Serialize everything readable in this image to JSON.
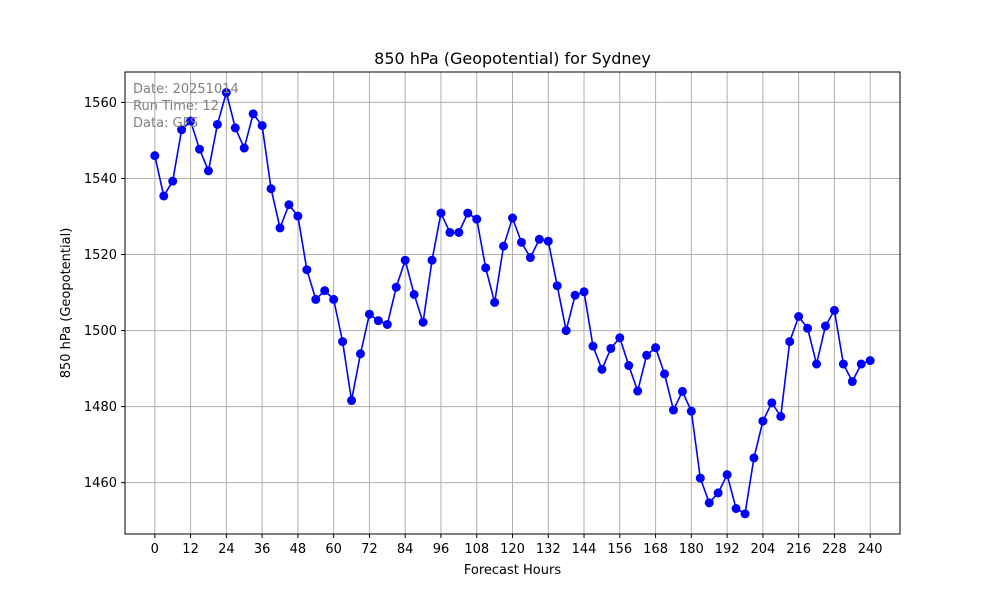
{
  "chart_data": {
    "type": "line",
    "title": "850 hPa (Geopotential) for Sydney",
    "xlabel": "Forecast Hours",
    "ylabel": "850 hPa (Geopotential)",
    "xlim": [
      -10,
      250
    ],
    "ylim": [
      1446.5,
      1568
    ],
    "xticks": [
      0,
      12,
      24,
      36,
      48,
      60,
      72,
      84,
      96,
      108,
      120,
      132,
      144,
      156,
      168,
      180,
      192,
      204,
      216,
      228,
      240
    ],
    "yticks": [
      1460,
      1480,
      1500,
      1520,
      1540,
      1560
    ],
    "grid": true,
    "annotations": [
      "Date: 20251014",
      "Run Time: 12",
      "Data: GFS"
    ],
    "series": [
      {
        "x": [
          0,
          3,
          6,
          9,
          12,
          15,
          18,
          21,
          24,
          27,
          30,
          33,
          36,
          39,
          42,
          45,
          48,
          51,
          54,
          57,
          60,
          63,
          66,
          69,
          72,
          75,
          78,
          81,
          84,
          87,
          90,
          93,
          96,
          99,
          102,
          105,
          108,
          111,
          114,
          117,
          120,
          123,
          126,
          129,
          132,
          135,
          138,
          141,
          144,
          147,
          150,
          153,
          156,
          159,
          162,
          165,
          168,
          171,
          174,
          177,
          180,
          183,
          186,
          189,
          192,
          195,
          198,
          201,
          204,
          207,
          210,
          213,
          216,
          219,
          222,
          225,
          228,
          231,
          234,
          237,
          240
        ],
        "values": [
          1546.0,
          1535.4,
          1539.3,
          1552.8,
          1555.1,
          1547.7,
          1542.0,
          1554.2,
          1562.6,
          1553.3,
          1548.0,
          1557.0,
          1553.9,
          1537.3,
          1527.0,
          1533.1,
          1530.1,
          1516.0,
          1508.2,
          1510.5,
          1508.2,
          1497.1,
          1481.6,
          1493.9,
          1504.3,
          1502.6,
          1501.6,
          1511.4,
          1518.5,
          1509.5,
          1502.2,
          1518.5,
          1530.9,
          1525.8,
          1525.8,
          1530.9,
          1529.3,
          1516.5,
          1507.4,
          1522.2,
          1529.6,
          1523.2,
          1519.2,
          1524.0,
          1523.5,
          1511.8,
          1500.0,
          1509.3,
          1510.2,
          1495.9,
          1489.8,
          1495.3,
          1498.1,
          1490.8,
          1484.1,
          1493.5,
          1495.5,
          1488.6,
          1479.1,
          1484.0,
          1478.8,
          1461.2,
          1454.7,
          1457.3,
          1462.1,
          1453.2,
          1451.8,
          1466.5,
          1476.2,
          1481.0,
          1477.4,
          1497.1,
          1503.7,
          1500.6,
          1491.2,
          1501.2,
          1505.3,
          1491.2,
          1486.6,
          1491.2,
          1492.1
        ],
        "color": "#0000ff"
      }
    ]
  }
}
